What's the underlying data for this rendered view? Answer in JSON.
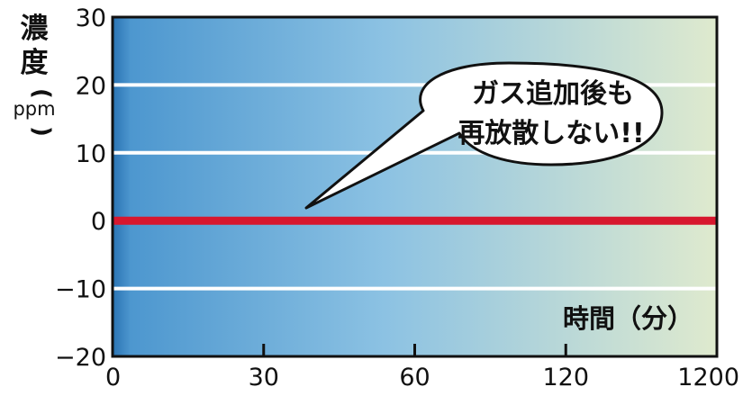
{
  "chart_data": {
    "type": "line",
    "ylabel": "濃度",
    "ylabel_unit": "ppm",
    "xlabel": "時間（分）",
    "x": [
      "0",
      "30",
      "60",
      "120",
      "1200"
    ],
    "yticks": [
      30,
      20,
      10,
      0,
      -10,
      -20
    ],
    "ylim": [
      -20,
      30
    ],
    "grid": true,
    "series": [
      {
        "values": [
          0,
          0,
          0,
          0,
          0
        ],
        "color": "#d7172e"
      }
    ],
    "annotation": {
      "lines": [
        "ガス追加後も",
        "再放散しない!!"
      ]
    },
    "colors": {
      "background_start": "#2f7fbd",
      "background_mid": "#86bfe2",
      "background_end": "#dde9cb",
      "gridline": "#ffffff",
      "series": "#d7172e"
    }
  }
}
